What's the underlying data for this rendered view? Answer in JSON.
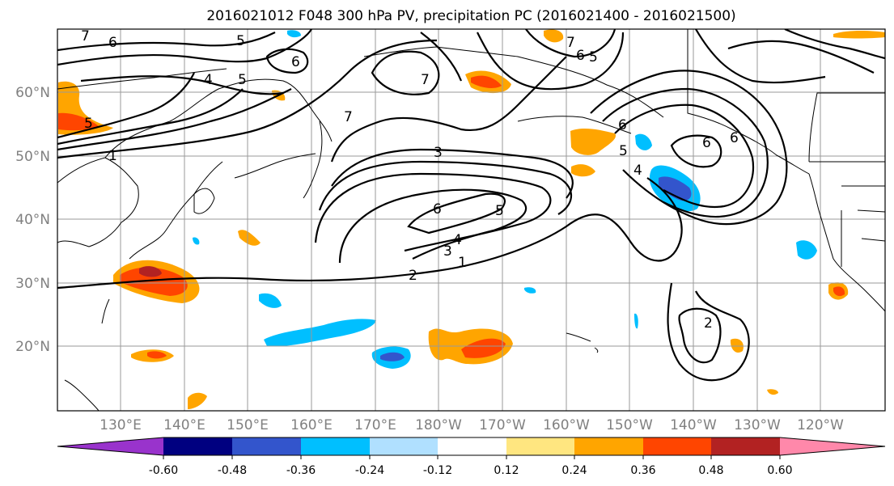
{
  "title": "2016021012 F048 300 hPa PV, precipitation PC (2016021400 - 2016021500)",
  "map": {
    "lon_ticks": [
      "130°E",
      "140°E",
      "150°E",
      "160°E",
      "170°E",
      "180°W",
      "170°W",
      "160°W",
      "150°W",
      "140°W",
      "130°W",
      "120°W"
    ],
    "lat_ticks": [
      "60°N",
      "50°N",
      "40°N",
      "30°N",
      "20°N"
    ],
    "contour_labels": [
      "5",
      "6",
      "4",
      "5",
      "6",
      "7",
      "7",
      "5",
      "1",
      "3",
      "6",
      "5",
      "4",
      "3",
      "2",
      "1",
      "6",
      "6",
      "5",
      "4",
      "6",
      "2",
      "7",
      "7",
      "6",
      "5"
    ]
  },
  "colorbar": {
    "colors": [
      "#9933cc",
      "#000080",
      "#3355cc",
      "#00bfff",
      "#b0e0ff",
      "#ffffff",
      "#ffe680",
      "#ffa500",
      "#ff4500",
      "#b22222",
      "#ff88aa"
    ],
    "tick_labels": [
      "-0.60",
      "-0.48",
      "-0.36",
      "-0.24",
      "-0.12",
      "0.12",
      "0.24",
      "0.36",
      "0.48",
      "0.60"
    ]
  }
}
